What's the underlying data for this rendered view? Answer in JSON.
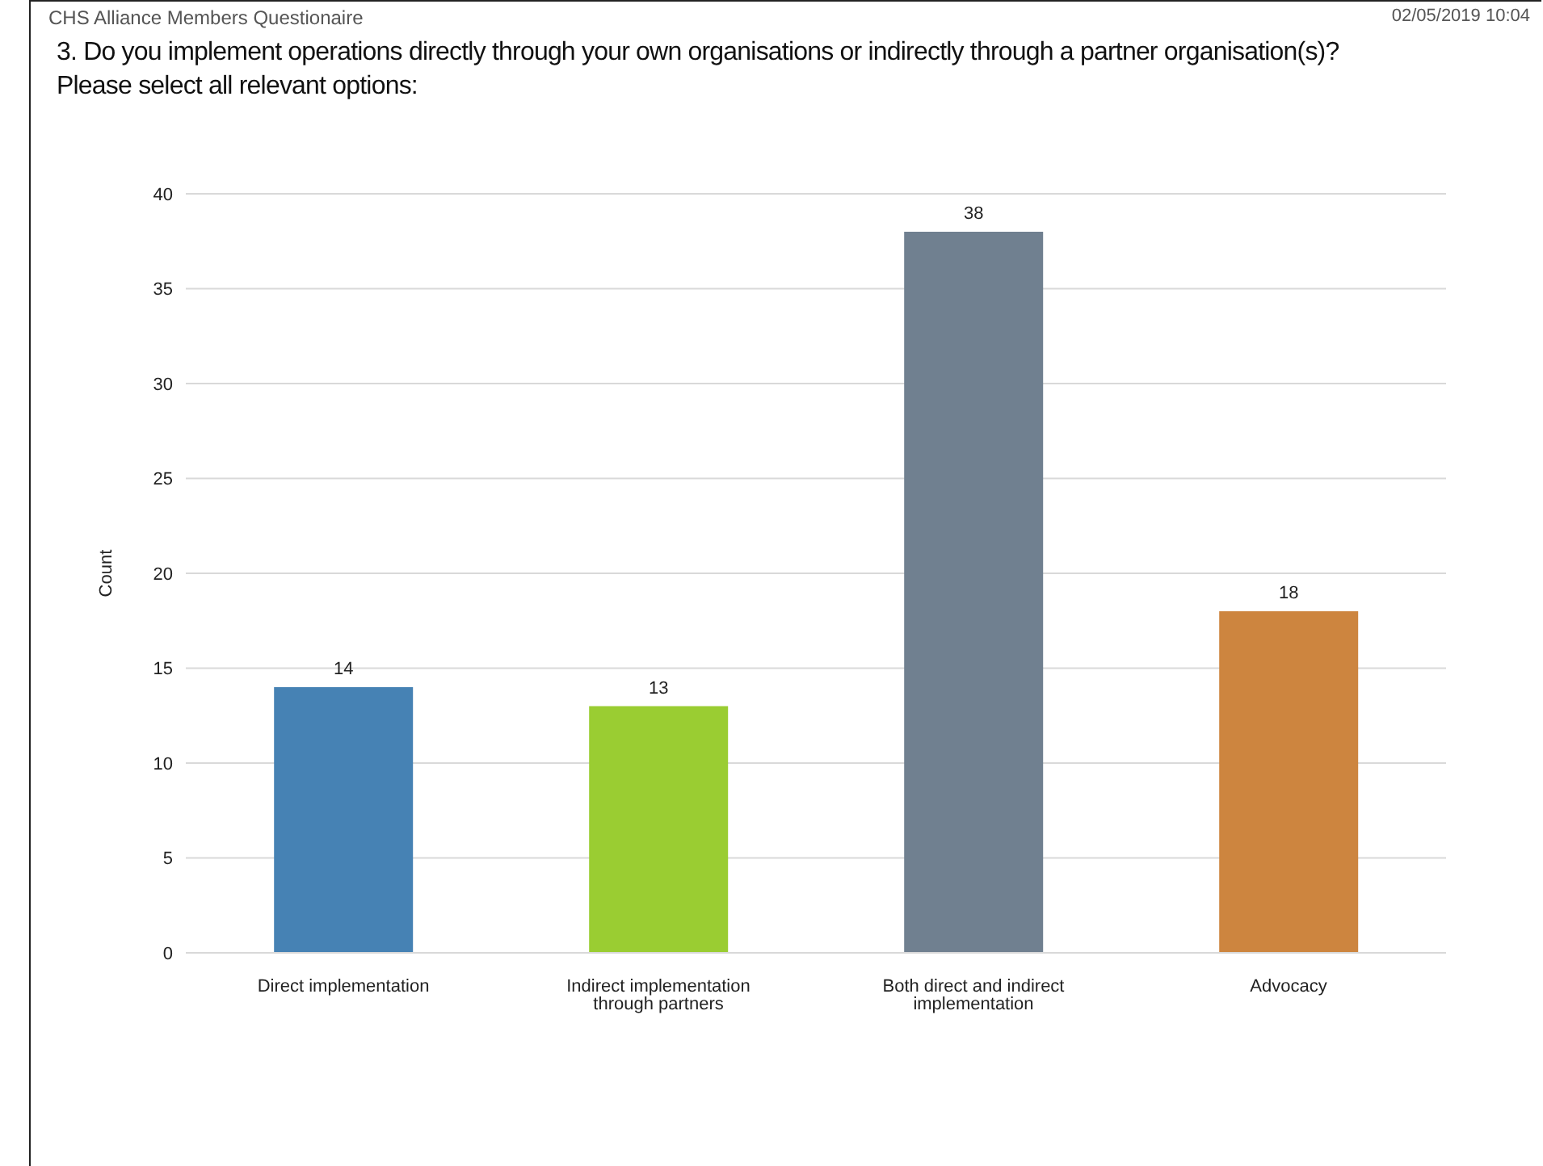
{
  "chart_data": {
    "type": "bar",
    "title": "3. Do you implement operations directly through your own organisations or indirectly through a partner organisation(s)? Please select all relevant options:",
    "subtitle": "CHS Alliance Members Questionaire",
    "annotations": [
      "02/05/2019 10:04"
    ],
    "ylabel": "Count",
    "categories": [
      "Direct implementation",
      "Indirect implementation through partners",
      "Both direct and indirect implementation",
      "Advocacy"
    ],
    "values": [
      14,
      13,
      38,
      18
    ],
    "colors": [
      "#4682b4",
      "#9acd32",
      "#708090",
      "#cd853f"
    ],
    "ylim": [
      0,
      40
    ],
    "yticks": [
      0,
      5,
      10,
      15,
      20,
      25,
      30,
      35,
      40
    ],
    "grid": "y",
    "data_labels": true
  }
}
